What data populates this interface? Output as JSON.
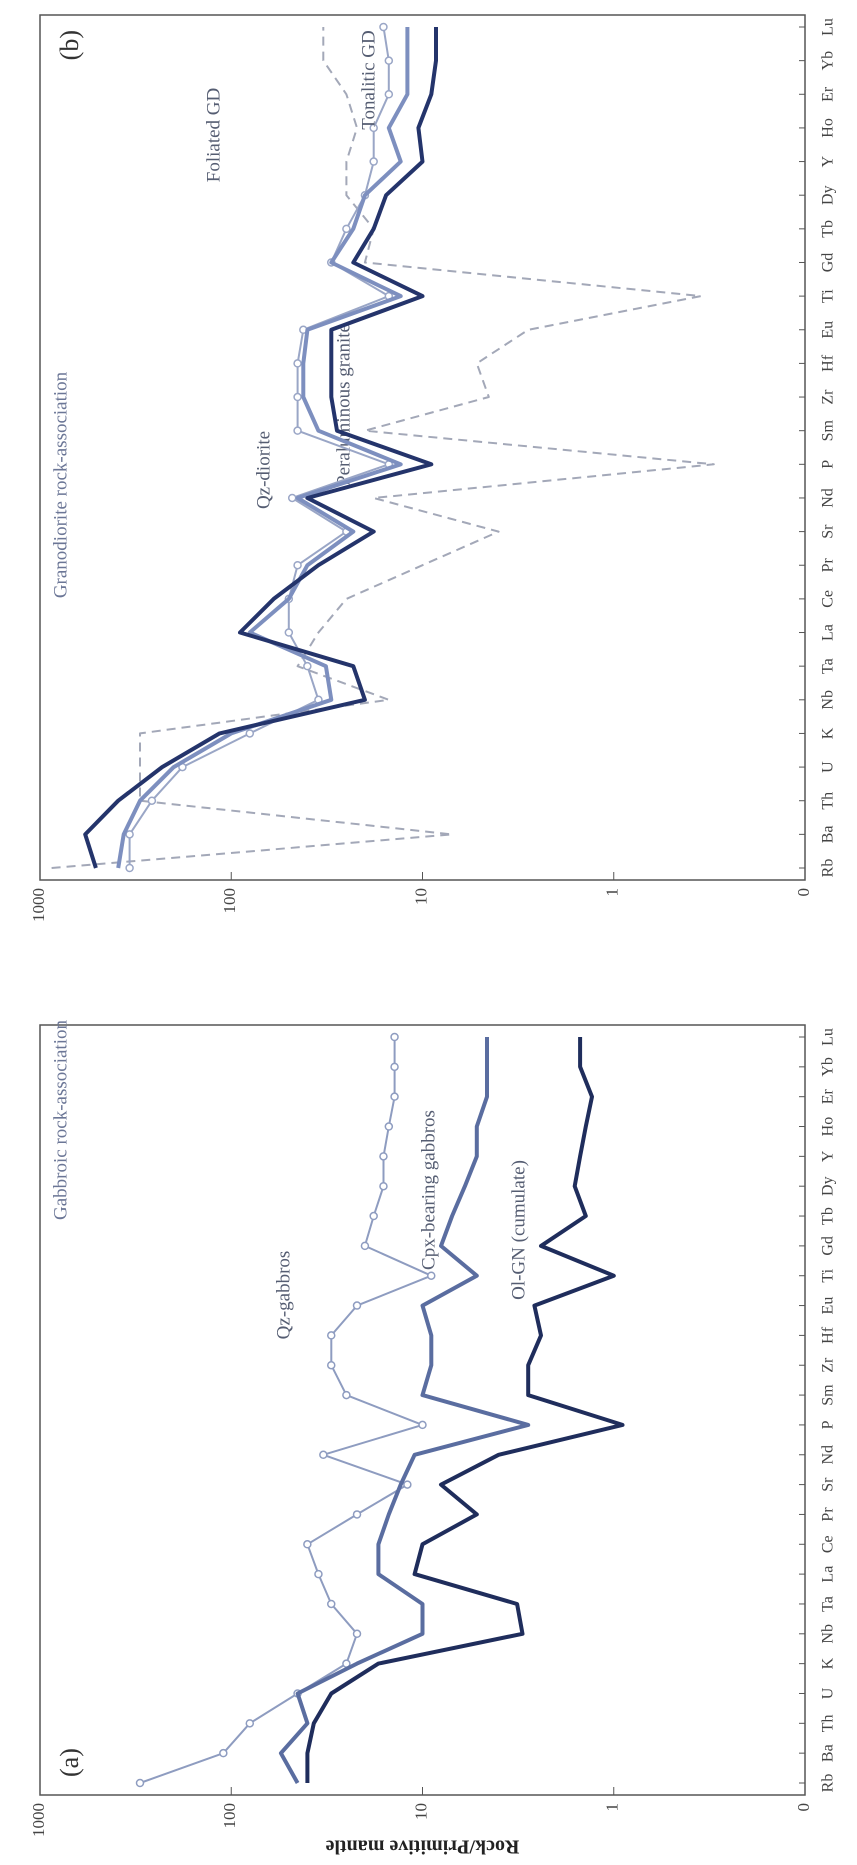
{
  "chart_data": [
    {
      "type": "line",
      "title": "Gabbroic rock-association",
      "panel_label": "(a)",
      "y_label": "Rock/Primitive mantle",
      "log_scale": true,
      "categories": [
        "Rb",
        "Ba",
        "Th",
        "U",
        "K",
        "Nb",
        "Ta",
        "La",
        "Ce",
        "Pr",
        "Sr",
        "Nd",
        "P",
        "Sm",
        "Zr",
        "Hf",
        "Eu",
        "Ti",
        "Gd",
        "Tb",
        "Dy",
        "Y",
        "Ho",
        "Er",
        "Yb",
        "Lu"
      ],
      "ylim": [
        0.1,
        1000
      ],
      "yticks": [
        {
          "value": 0.1,
          "label": "0"
        },
        1,
        10,
        100,
        1000
      ],
      "series": [
        {
          "name": "Qz-gabbros",
          "color": "#8e9cc0",
          "markers": true,
          "dashed": false,
          "values": [
            300,
            110,
            80,
            45,
            25,
            22,
            30,
            35,
            40,
            22,
            12,
            33,
            10,
            25,
            30,
            30,
            22,
            9,
            20,
            18,
            16,
            16,
            15,
            14,
            14,
            14
          ]
        },
        {
          "name": "Cpx-bearing gabbros",
          "color": "#5a6da0",
          "markers": false,
          "dashed": false,
          "values": [
            45,
            55,
            40,
            45,
            22,
            10,
            10,
            17,
            17,
            15,
            13,
            11,
            2.8,
            10,
            9,
            9,
            10,
            5.2,
            8,
            7,
            6,
            5.2,
            5.2,
            4.6,
            4.6,
            4.6
          ]
        },
        {
          "name": "Ol-GN (cumulate)",
          "color": "#1f2d5c",
          "markers": false,
          "dashed": false,
          "values": [
            40,
            40,
            37,
            30,
            17,
            3,
            3.2,
            11,
            10,
            5.2,
            8,
            4,
            0.9,
            2.8,
            2.8,
            2.4,
            2.6,
            1,
            2.4,
            1.4,
            1.6,
            1.5,
            1.4,
            1.3,
            1.5,
            1.5
          ]
        }
      ]
    },
    {
      "type": "line",
      "title": "Granodiorite rock-association",
      "panel_label": "(b)",
      "log_scale": true,
      "categories": [
        "Rb",
        "Ba",
        "Th",
        "U",
        "K",
        "Nb",
        "Ta",
        "La",
        "Ce",
        "Pr",
        "Sr",
        "Nd",
        "P",
        "Sm",
        "Zr",
        "Hf",
        "Eu",
        "Ti",
        "Gd",
        "Tb",
        "Dy",
        "Y",
        "Ho",
        "Er",
        "Yb",
        "Lu"
      ],
      "ylim": [
        0.1,
        1000
      ],
      "yticks": [
        {
          "value": 0.1,
          "label": "0"
        },
        1,
        10,
        100,
        1000
      ],
      "series": [
        {
          "name": "Peraluminous granite",
          "color": "#a3a8b8",
          "markers": false,
          "dashed": true,
          "values": [
            870,
            7,
            300,
            300,
            300,
            15,
            45,
            35,
            25,
            10,
            4,
            18,
            0.3,
            20,
            4.5,
            5.2,
            2.8,
            0.35,
            20,
            18,
            25,
            25,
            22,
            25,
            33,
            33
          ]
        },
        {
          "name": "Foliated GD",
          "color": "#9aa6c6",
          "markers": true,
          "dashed": false,
          "values": [
            340,
            340,
            260,
            180,
            80,
            35,
            40,
            50,
            50,
            45,
            25,
            48,
            15,
            45,
            45,
            45,
            42,
            15,
            30,
            25,
            20,
            18,
            18,
            15,
            15,
            16
          ]
        },
        {
          "name": "Qz-diorite",
          "color": "#7d8fbf",
          "markers": false,
          "dashed": false,
          "values": [
            390,
            365,
            300,
            200,
            100,
            30,
            32,
            80,
            50,
            40,
            23,
            45,
            13,
            35,
            42,
            42,
            40,
            13,
            30,
            23,
            20,
            13,
            15,
            12,
            12,
            12
          ]
        },
        {
          "name": "Tonalitic GD",
          "color": "#24346b",
          "markers": false,
          "dashed": false,
          "values": [
            510,
            580,
            390,
            230,
            115,
            20,
            23,
            90,
            60,
            35,
            18,
            40,
            9,
            28,
            30,
            30,
            30,
            10,
            23,
            18,
            15.5,
            10,
            10.5,
            9,
            8.5,
            8.5
          ]
        }
      ]
    }
  ]
}
